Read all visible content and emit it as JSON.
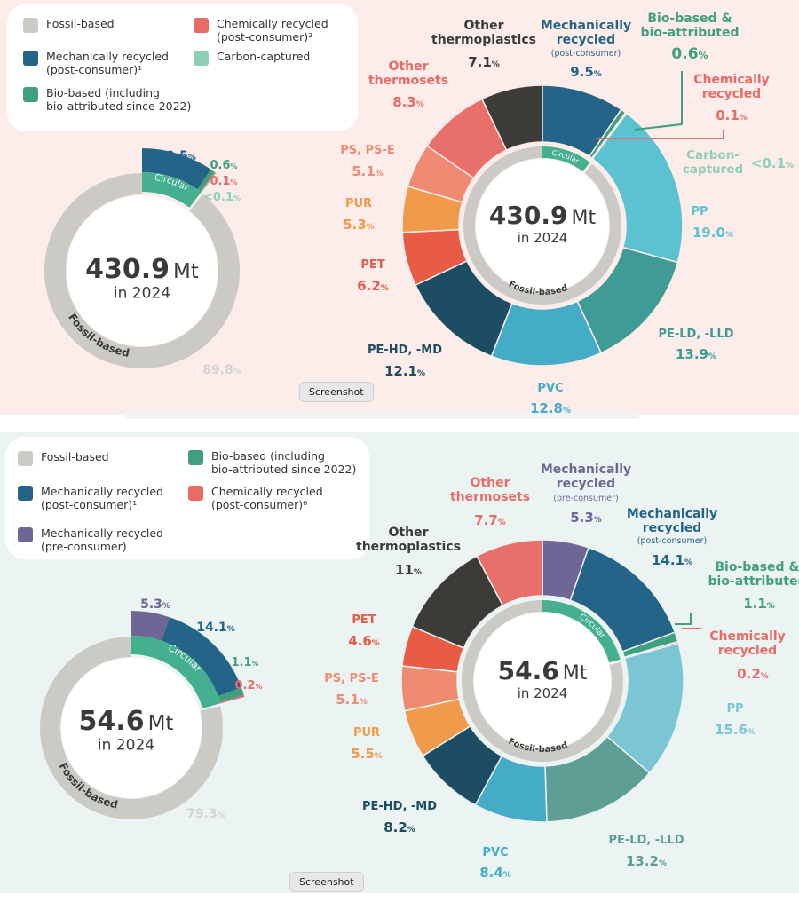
{
  "colors": {
    "fossil": "#cbcac5",
    "mech_post": "#246489",
    "mech_pre": "#6e6796",
    "bio": "#3f9f7e",
    "chem": "#e96b66",
    "carbon": "#8dd1b4",
    "circular_badge": "#45b08f",
    "pp_top": "#5bc2d2",
    "pp_bottom": "#7cc5d4",
    "pe_ld": "#3e9b96",
    "pe_ld_bottom": "#5e9e95",
    "pvc": "#45acc8",
    "pe_hd": "#1c4d62",
    "pet": "#e85b45",
    "pur": "#f09b4c",
    "ps": "#ef8a72",
    "other_thermosets": "#e96f6a",
    "other_thermoplastics": "#3c3b38",
    "grey_label": "#d4d4d0",
    "dark_text": "#3a3a3a"
  },
  "top": {
    "legend": [
      {
        "label": "Fossil-based",
        "color": "fossil"
      },
      {
        "label": "Chemically recycled\n(post-consumer)²",
        "color": "chem"
      },
      {
        "label": "Mechanically recycled\n(post-consumer)¹",
        "color": "mech_post"
      },
      {
        "label": "Carbon-captured",
        "color": "carbon"
      },
      {
        "label": "Bio-based (including\nbio-attributed since 2022)",
        "color": "bio"
      }
    ],
    "center_value": "430.9",
    "center_unit": "Mt",
    "center_year": "in 2024",
    "circular_label": "Circular",
    "fossil_label": "Fossil-based",
    "screenshot_label": "Screenshot",
    "small_value_labels": [
      "9.5",
      "0.6",
      "0.1",
      "<0.1",
      "89.8"
    ],
    "big_labels": {
      "other_thermoplastics": {
        "name": "Other\nthermoplastics",
        "value": "7.1"
      },
      "mech": {
        "name": "Mechanically\nrecycled",
        "sub": "(post-consumer)",
        "value": "9.5"
      },
      "bio": {
        "name": "Bio-based &\nbio-attributed",
        "value": "0.6"
      },
      "chem": {
        "name": "Chemically\nrecycled",
        "value": "0.1"
      },
      "carbon": {
        "name": "Carbon-\ncaptured",
        "value": "<0.1"
      },
      "other_thermosets": {
        "name": "Other\nthermosets",
        "value": "8.3"
      },
      "ps": {
        "name": "PS, PS-E",
        "value": "5.1"
      },
      "pur": {
        "name": "PUR",
        "value": "5.3"
      },
      "pet": {
        "name": "PET",
        "value": "6.2"
      },
      "pe_hd": {
        "name": "PE-HD, -MD",
        "value": "12.1"
      },
      "pvc": {
        "name": "PVC",
        "value": "12.8"
      },
      "pe_ld": {
        "name": "PE-LD, -LLD",
        "value": "13.9"
      },
      "pp": {
        "name": "PP",
        "value": "19.0"
      }
    }
  },
  "bottom": {
    "legend": [
      {
        "label": "Fossil-based",
        "color": "fossil"
      },
      {
        "label": "Bio-based (including\nbio-attributed since 2022)",
        "color": "bio"
      },
      {
        "label": "Mechanically recycled\n(post-consumer)¹",
        "color": "mech_post"
      },
      {
        "label": "Chemically recycled\n(post-consumer)⁶",
        "color": "chem"
      },
      {
        "label": "Mechanically recycled\n(pre-consumer)",
        "color": "mech_pre"
      }
    ],
    "center_value": "54.6",
    "center_unit": "Mt",
    "center_year": "in 2024",
    "circular_label": "Circular",
    "fossil_label": "Fossil-based",
    "screenshot_label": "Screenshot",
    "small_value_labels": [
      "5.3",
      "14.1",
      "1.1",
      "0.2",
      "79.3"
    ],
    "big_labels": {
      "other_thermosets": {
        "name": "Other\nthermosets",
        "value": "7.7"
      },
      "mech_pre": {
        "name": "Mechanically\nrecycled",
        "sub": "(pre-consumer)",
        "value": "5.3"
      },
      "mech_post": {
        "name": "Mechanically\nrecycled",
        "sub": "(post-consumer)",
        "value": "14.1"
      },
      "bio": {
        "name": "Bio-based &\nbio-attributed",
        "value": "1.1"
      },
      "chem": {
        "name": "Chemically\nrecycled",
        "value": "0.2"
      },
      "other_thermoplastics": {
        "name": "Other\nthermoplastics",
        "value": "11"
      },
      "pet": {
        "name": "PET",
        "value": "4.6"
      },
      "ps": {
        "name": "PS, PS-E",
        "value": "5.1"
      },
      "pur": {
        "name": "PUR",
        "value": "5.5"
      },
      "pe_hd": {
        "name": "PE-HD, -MD",
        "value": "8.2"
      },
      "pvc": {
        "name": "PVC",
        "value": "8.4"
      },
      "pe_ld": {
        "name": "PE-LD, -LLD",
        "value": "13.2"
      },
      "pp": {
        "name": "PP",
        "value": "15.6"
      }
    }
  },
  "chart_data": [
    {
      "type": "pie",
      "categories": [
        "Mechanically recycled (post-consumer)",
        "Bio-based & bio-attributed",
        "Chemically recycled",
        "Carbon-captured",
        "Fossil-based"
      ],
      "values": [
        9.5,
        0.6,
        0.1,
        0.05,
        89.8
      ],
      "unit": "%"
    },
    {
      "type": "pie",
      "categories": [
        "Other thermoplastics",
        "Mechanically recycled (post-consumer)",
        "Bio-based & bio-attributed",
        "Chemically recycled",
        "Carbon-captured",
        "PP",
        "PE-LD, -LLD",
        "PVC",
        "PE-HD, -MD",
        "PET",
        "PUR",
        "PS, PS-E",
        "Other thermosets"
      ],
      "values": [
        7.1,
        9.5,
        0.6,
        0.1,
        0.05,
        19.0,
        13.9,
        12.8,
        12.1,
        6.2,
        5.3,
        5.1,
        8.3
      ],
      "unit": "%"
    },
    {
      "type": "pie",
      "categories": [
        "Mechanically recycled (pre-consumer)",
        "Mechanically recycled (post-consumer)",
        "Bio-based & bio-attributed",
        "Chemically recycled",
        "Fossil-based"
      ],
      "values": [
        5.3,
        14.1,
        1.1,
        0.2,
        79.3
      ],
      "unit": "%"
    },
    {
      "type": "pie",
      "categories": [
        "Mechanically recycled (pre-consumer)",
        "Mechanically recycled (post-consumer)",
        "Bio-based & bio-attributed",
        "Chemically recycled",
        "PP",
        "PE-LD, -LLD",
        "PVC",
        "PE-HD, -MD",
        "PUR",
        "PS, PS-E",
        "PET",
        "Other thermoplastics",
        "Other thermosets"
      ],
      "values": [
        5.3,
        14.1,
        1.1,
        0.2,
        15.6,
        13.2,
        8.4,
        8.2,
        5.5,
        5.1,
        4.6,
        11,
        7.7
      ],
      "unit": "%"
    }
  ]
}
